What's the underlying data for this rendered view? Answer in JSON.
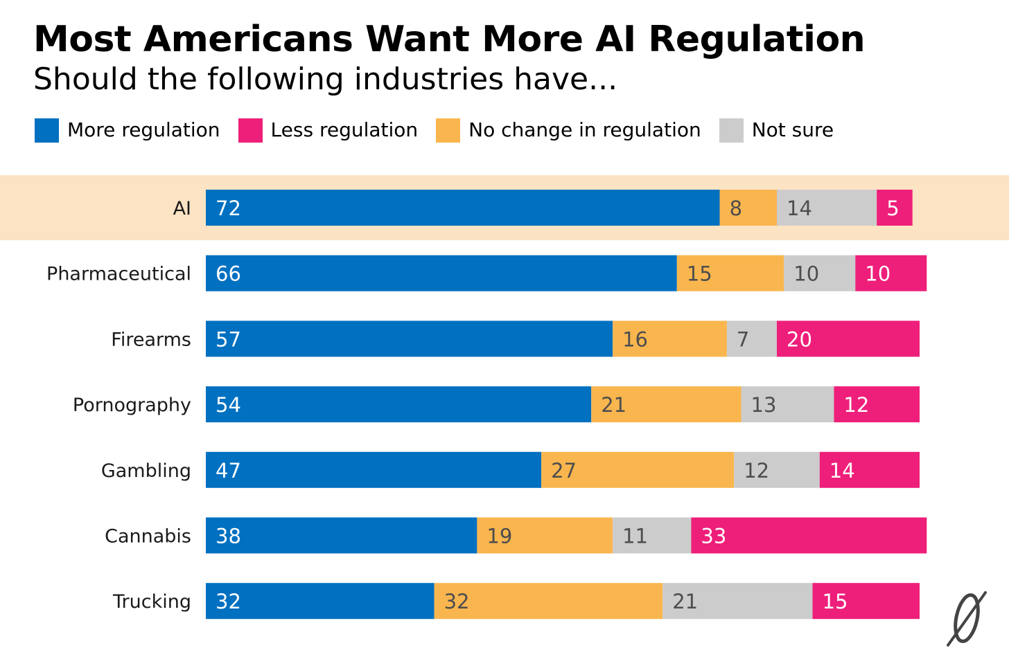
{
  "chart_data": {
    "type": "bar",
    "orientation": "horizontal",
    "stacked": true,
    "title": "Most Americans Want More AI Regulation",
    "subtitle": "Should the following industries have...",
    "categories": [
      "AI",
      "Pharmaceutical",
      "Firearms",
      "Pornography",
      "Gambling",
      "Cannabis",
      "Trucking"
    ],
    "series": [
      {
        "name": "More regulation",
        "values": [
          72,
          66,
          57,
          54,
          47,
          38,
          32
        ],
        "color": "#0070C0"
      },
      {
        "name": "No change in regulation",
        "values": [
          8,
          15,
          16,
          21,
          27,
          19,
          32
        ],
        "color": "#F9B64F"
      },
      {
        "name": "Not sure",
        "values": [
          14,
          10,
          7,
          13,
          12,
          11,
          21
        ],
        "color": "#CCCCCC"
      },
      {
        "name": "Less regulation",
        "values": [
          5,
          10,
          20,
          12,
          14,
          33,
          15
        ],
        "color": "#EE1F7A"
      }
    ],
    "legend": [
      {
        "name": "More regulation",
        "color": "#0070C0"
      },
      {
        "name": "Less regulation",
        "color": "#EE1F7A"
      },
      {
        "name": "No change in regulation",
        "color": "#F9B64F"
      },
      {
        "name": "Not sure",
        "color": "#CCCCCC"
      }
    ],
    "legend_position": "top-left",
    "highlighted_category": "AI",
    "highlight_color": "#FCE3C4",
    "label_colors": {
      "on_blue": "#FFFFFF",
      "on_pink": "#FFFFFF",
      "on_orange": "#4D4D4D",
      "on_gray": "#4D4D4D"
    },
    "grid": false,
    "xlim": [
      0,
      100
    ]
  },
  "logo": {
    "name": "publisher-logo-icon"
  }
}
